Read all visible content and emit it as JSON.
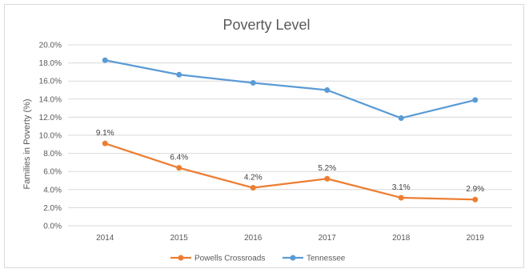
{
  "chart_data": {
    "type": "line",
    "title": "Poverty Level",
    "xlabel": "",
    "ylabel": "Families in Poverty (%)",
    "categories": [
      "2014",
      "2015",
      "2016",
      "2017",
      "2018",
      "2019"
    ],
    "ylim": [
      0,
      20
    ],
    "yticks": [
      "0.0%",
      "2.0%",
      "4.0%",
      "6.0%",
      "8.0%",
      "10.0%",
      "12.0%",
      "14.0%",
      "16.0%",
      "18.0%",
      "20.0%"
    ],
    "grid": true,
    "legend_position": "bottom",
    "series": [
      {
        "name": "Powells Crossroads",
        "color": "#ed7d31",
        "values": [
          9.1,
          6.4,
          4.2,
          5.2,
          3.1,
          2.9
        ],
        "labels": [
          "9.1%",
          "6.4%",
          "4.2%",
          "5.2%",
          "3.1%",
          "2.9%"
        ]
      },
      {
        "name": "Tennessee",
        "color": "#5b9bd5",
        "values": [
          18.3,
          16.7,
          15.8,
          15.0,
          11.9,
          13.9
        ]
      }
    ]
  }
}
